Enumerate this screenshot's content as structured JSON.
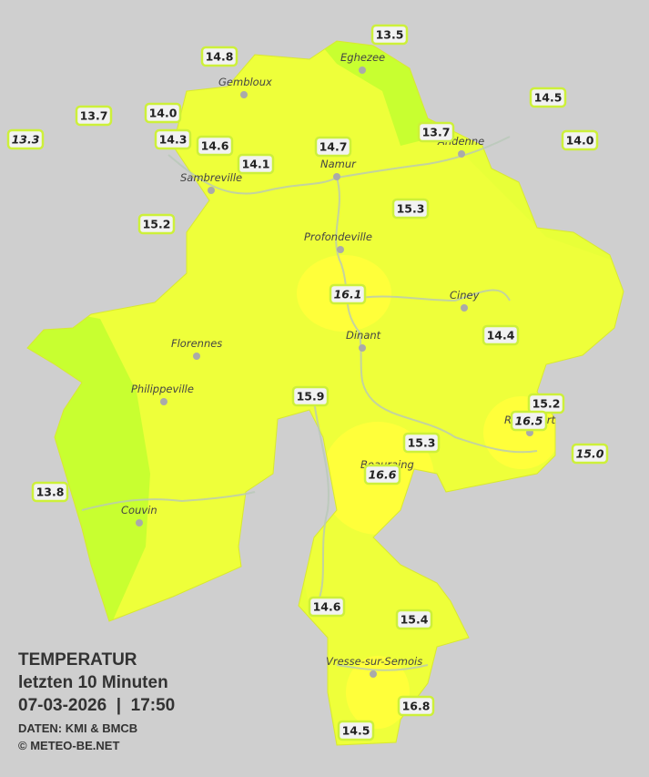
{
  "legend": {
    "title": "TEMPERATUR",
    "subtitle": "letzten 10 Minuten",
    "timestamp": "07-03-2026  |  17:50",
    "source": "DATEN: KMI & BMCB",
    "copyright": "© METEO-BE.NET"
  },
  "cities": [
    "Eghezee",
    "Gembloux",
    "Andenne",
    "Namur",
    "Sambreville",
    "Profondeville",
    "Ciney",
    "Dinant",
    "Florennes",
    "Philippeville",
    "Beauraing",
    "Rochefort",
    "Couvin",
    "Vresse-sur-Semois"
  ],
  "stations": [
    "13.5",
    "14.8",
    "14.5",
    "13.7",
    "14.0",
    "14.3",
    "14.6",
    "14.7",
    "13.7",
    "14.0",
    "14.1",
    "15.3",
    "15.2",
    "14.4",
    "15.9",
    "15.2",
    "15.3",
    "13.8",
    "14.6",
    "15.4",
    "16.8",
    "14.5"
  ],
  "other_stations": [
    "13.3",
    "16.1",
    "16.5",
    "15.0",
    "16.6"
  ]
}
